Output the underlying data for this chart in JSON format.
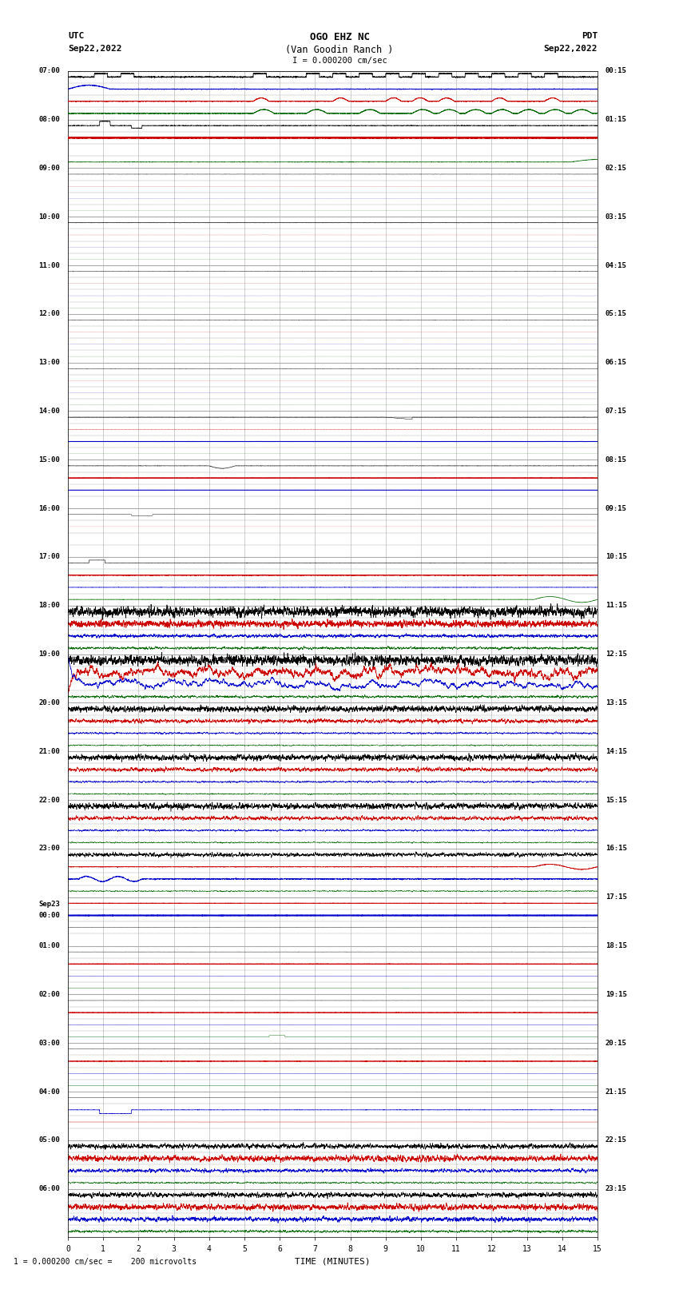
{
  "title_line1": "OGO EHZ NC",
  "title_line2": "(Van Goodin Ranch )",
  "title_line3": "I = 0.000200 cm/sec",
  "left_header_line1": "UTC",
  "left_header_line2": "Sep22,2022",
  "right_header_line1": "PDT",
  "right_header_line2": "Sep22,2022",
  "xlabel": "TIME (MINUTES)",
  "bottom_note": "1 = 0.000200 cm/sec =    200 microvolts",
  "bg_color": "#ffffff",
  "grid_color": "#aaaaaa",
  "black": "#000000",
  "red": "#cc0000",
  "blue": "#0000cc",
  "green": "#006600",
  "x_min": 0,
  "x_max": 15,
  "x_ticks": [
    0,
    1,
    2,
    3,
    4,
    5,
    6,
    7,
    8,
    9,
    10,
    11,
    12,
    13,
    14,
    15
  ],
  "utc_labels": [
    "07:00",
    "08:00",
    "09:00",
    "10:00",
    "11:00",
    "12:00",
    "13:00",
    "14:00",
    "15:00",
    "16:00",
    "17:00",
    "18:00",
    "19:00",
    "20:00",
    "21:00",
    "22:00",
    "23:00",
    "Sep23\n00:00",
    "01:00",
    "02:00",
    "03:00",
    "04:00",
    "05:00",
    "06:00"
  ],
  "pdt_labels": [
    "00:15",
    "01:15",
    "02:15",
    "03:15",
    "04:15",
    "05:15",
    "06:15",
    "07:15",
    "08:15",
    "09:15",
    "10:15",
    "11:15",
    "12:15",
    "13:15",
    "14:15",
    "15:15",
    "16:15",
    "17:15",
    "18:15",
    "19:15",
    "20:15",
    "21:15",
    "22:15",
    "23:15"
  ]
}
